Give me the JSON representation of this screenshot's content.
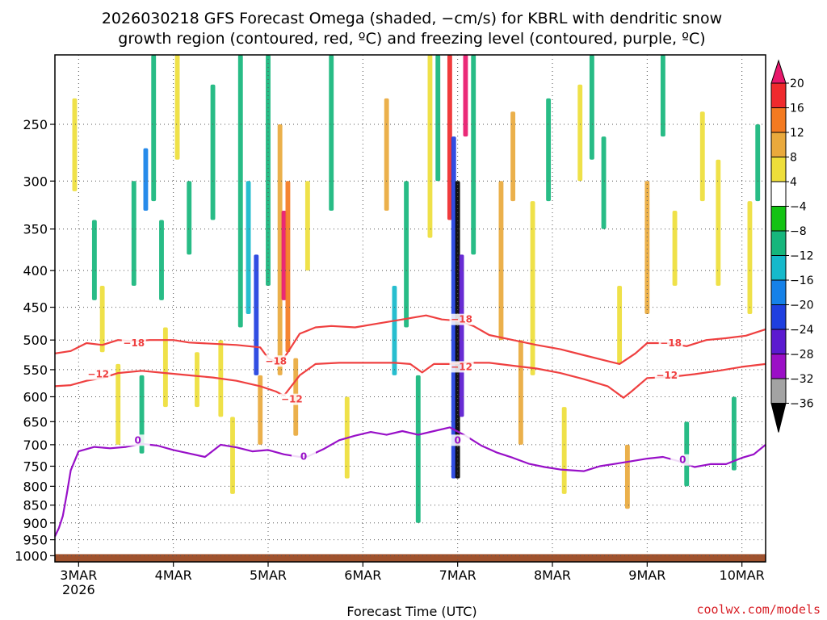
{
  "chart_data": {
    "type": "heatmap",
    "title_line1": "2026030218 GFS Forecast Omega (shaded, −cm/s) for KBRL with dendritic snow",
    "title_line2": "growth region (contoured, red, ºC) and freezing level (contoured, purple, ºC)",
    "xlabel": "Forecast Time (UTC)",
    "ylabel": "",
    "credit": "coolwx.com/models",
    "x_year": "2026",
    "x_ticks": [
      {
        "label": "3MAR",
        "t": 6
      },
      {
        "label": "4MAR",
        "t": 30
      },
      {
        "label": "5MAR",
        "t": 54
      },
      {
        "label": "6MAR",
        "t": 78
      },
      {
        "label": "7MAR",
        "t": 102
      },
      {
        "label": "8MAR",
        "t": 126
      },
      {
        "label": "9MAR",
        "t": 150
      },
      {
        "label": "10MAR",
        "t": 174
      }
    ],
    "xlim": [
      0,
      180
    ],
    "ylim": [
      1020,
      200
    ],
    "y_ticks": [
      250,
      300,
      350,
      400,
      450,
      500,
      550,
      600,
      650,
      700,
      750,
      800,
      850,
      900,
      950,
      1000
    ],
    "grid": true,
    "colorbar": {
      "labels": [
        "20",
        "16",
        "12",
        "8",
        "4",
        "−4",
        "−8",
        "−12",
        "−16",
        "−20",
        "−24",
        "−28",
        "−32",
        "−36"
      ],
      "colors": [
        "#e8176b",
        "#ef2a2d",
        "#f47a20",
        "#e9a93c",
        "#eede3a",
        "#ffffff",
        "#13c313",
        "#16b67c",
        "#15b9cb",
        "#1581e8",
        "#1f3fe0",
        "#5b1ad0",
        "#9b0fc6",
        "#a3a3a3",
        "#000000"
      ]
    },
    "omega_cells": [
      {
        "t": 5,
        "p1": 230,
        "p2": 310,
        "v": 6
      },
      {
        "t": 10,
        "p1": 340,
        "p2": 440,
        "v": -8
      },
      {
        "t": 12,
        "p1": 420,
        "p2": 520,
        "v": 6
      },
      {
        "t": 16,
        "p1": 540,
        "p2": 700,
        "v": 6
      },
      {
        "t": 20,
        "p1": 300,
        "p2": 420,
        "v": -10
      },
      {
        "t": 22,
        "p1": 560,
        "p2": 720,
        "v": -8
      },
      {
        "t": 23,
        "p1": 270,
        "p2": 330,
        "v": -18
      },
      {
        "t": 25,
        "p1": 200,
        "p2": 320,
        "v": -10
      },
      {
        "t": 27,
        "p1": 340,
        "p2": 440,
        "v": -8
      },
      {
        "t": 28,
        "p1": 480,
        "p2": 620,
        "v": 5
      },
      {
        "t": 31,
        "p1": 200,
        "p2": 280,
        "v": 6
      },
      {
        "t": 34,
        "p1": 300,
        "p2": 380,
        "v": -8
      },
      {
        "t": 36,
        "p1": 520,
        "p2": 620,
        "v": 6
      },
      {
        "t": 40,
        "p1": 220,
        "p2": 340,
        "v": -10
      },
      {
        "t": 42,
        "p1": 500,
        "p2": 640,
        "v": 6
      },
      {
        "t": 45,
        "p1": 640,
        "p2": 820,
        "v": 6
      },
      {
        "t": 47,
        "p1": 200,
        "p2": 480,
        "v": -10
      },
      {
        "t": 49,
        "p1": 300,
        "p2": 460,
        "v": -14
      },
      {
        "t": 51,
        "p1": 380,
        "p2": 560,
        "v": -20
      },
      {
        "t": 52,
        "p1": 560,
        "p2": 700,
        "v": 10
      },
      {
        "t": 54,
        "p1": 200,
        "p2": 420,
        "v": -8
      },
      {
        "t": 57,
        "p1": 250,
        "p2": 560,
        "v": 8
      },
      {
        "t": 58,
        "p1": 330,
        "p2": 440,
        "v": 20
      },
      {
        "t": 59,
        "p1": 300,
        "p2": 520,
        "v": 12
      },
      {
        "t": 61,
        "p1": 530,
        "p2": 680,
        "v": 8
      },
      {
        "t": 64,
        "p1": 300,
        "p2": 400,
        "v": 6
      },
      {
        "t": 70,
        "p1": 200,
        "p2": 330,
        "v": -8
      },
      {
        "t": 74,
        "p1": 600,
        "p2": 780,
        "v": 6
      },
      {
        "t": 84,
        "p1": 230,
        "p2": 330,
        "v": 10
      },
      {
        "t": 86,
        "p1": 420,
        "p2": 560,
        "v": -12
      },
      {
        "t": 89,
        "p1": 300,
        "p2": 480,
        "v": -8
      },
      {
        "t": 92,
        "p1": 560,
        "p2": 900,
        "v": -8
      },
      {
        "t": 95,
        "p1": 200,
        "p2": 360,
        "v": 6
      },
      {
        "t": 97,
        "p1": 200,
        "p2": 300,
        "v": -8
      },
      {
        "t": 100,
        "p1": 200,
        "p2": 340,
        "v": 16
      },
      {
        "t": 101,
        "p1": 260,
        "p2": 780,
        "v": -20
      },
      {
        "t": 102,
        "p1": 300,
        "p2": 780,
        "v": -36
      },
      {
        "t": 103,
        "p1": 380,
        "p2": 640,
        "v": -24
      },
      {
        "t": 104,
        "p1": 200,
        "p2": 260,
        "v": 20
      },
      {
        "t": 106,
        "p1": 200,
        "p2": 380,
        "v": -8
      },
      {
        "t": 113,
        "p1": 300,
        "p2": 500,
        "v": 8
      },
      {
        "t": 116,
        "p1": 240,
        "p2": 320,
        "v": 8
      },
      {
        "t": 118,
        "p1": 500,
        "p2": 700,
        "v": 10
      },
      {
        "t": 121,
        "p1": 320,
        "p2": 560,
        "v": 6
      },
      {
        "t": 125,
        "p1": 230,
        "p2": 320,
        "v": -10
      },
      {
        "t": 129,
        "p1": 620,
        "p2": 820,
        "v": 6
      },
      {
        "t": 133,
        "p1": 220,
        "p2": 300,
        "v": 6
      },
      {
        "t": 136,
        "p1": 200,
        "p2": 280,
        "v": -8
      },
      {
        "t": 139,
        "p1": 260,
        "p2": 350,
        "v": -10
      },
      {
        "t": 143,
        "p1": 420,
        "p2": 540,
        "v": 6
      },
      {
        "t": 145,
        "p1": 700,
        "p2": 860,
        "v": 10
      },
      {
        "t": 150,
        "p1": 300,
        "p2": 460,
        "v": 8
      },
      {
        "t": 154,
        "p1": 200,
        "p2": 260,
        "v": -8
      },
      {
        "t": 157,
        "p1": 330,
        "p2": 420,
        "v": 6
      },
      {
        "t": 160,
        "p1": 650,
        "p2": 800,
        "v": -8
      },
      {
        "t": 164,
        "p1": 240,
        "p2": 320,
        "v": 6
      },
      {
        "t": 168,
        "p1": 280,
        "p2": 420,
        "v": 5
      },
      {
        "t": 172,
        "p1": 600,
        "p2": 760,
        "v": -8
      },
      {
        "t": 176,
        "p1": 320,
        "p2": 460,
        "v": 6
      },
      {
        "t": 178,
        "p1": 250,
        "p2": 320,
        "v": -8
      }
    ],
    "contours": [
      {
        "name": "dgz-upper",
        "level": -18,
        "color": "#ef4040",
        "label": "−18",
        "label_pos": [
          {
            "t": 20,
            "p": 505
          },
          {
            "t": 56,
            "p": 535
          },
          {
            "t": 103,
            "p": 468
          },
          {
            "t": 156,
            "p": 505
          }
        ],
        "points": [
          [
            0,
            522
          ],
          [
            4,
            518
          ],
          [
            8,
            505
          ],
          [
            12,
            508
          ],
          [
            16,
            500
          ],
          [
            20,
            502
          ],
          [
            24,
            500
          ],
          [
            30,
            500
          ],
          [
            34,
            504
          ],
          [
            40,
            506
          ],
          [
            46,
            508
          ],
          [
            52,
            512
          ],
          [
            54,
            530
          ],
          [
            57,
            540
          ],
          [
            59,
            520
          ],
          [
            62,
            490
          ],
          [
            66,
            480
          ],
          [
            70,
            478
          ],
          [
            76,
            480
          ],
          [
            82,
            474
          ],
          [
            88,
            468
          ],
          [
            94,
            462
          ],
          [
            98,
            468
          ],
          [
            102,
            470
          ],
          [
            106,
            478
          ],
          [
            110,
            492
          ],
          [
            116,
            500
          ],
          [
            122,
            508
          ],
          [
            128,
            515
          ],
          [
            134,
            525
          ],
          [
            140,
            535
          ],
          [
            143,
            540
          ],
          [
            147,
            522
          ],
          [
            150,
            505
          ],
          [
            155,
            505
          ],
          [
            160,
            510
          ],
          [
            165,
            500
          ],
          [
            170,
            497
          ],
          [
            175,
            493
          ],
          [
            180,
            483
          ]
        ]
      },
      {
        "name": "dgz-lower",
        "level": -12,
        "color": "#ef4040",
        "label": "−12",
        "label_pos": [
          {
            "t": 11,
            "p": 558
          },
          {
            "t": 60,
            "p": 605
          },
          {
            "t": 103,
            "p": 545
          },
          {
            "t": 155,
            "p": 560
          }
        ],
        "points": [
          [
            0,
            580
          ],
          [
            4,
            578
          ],
          [
            8,
            570
          ],
          [
            12,
            565
          ],
          [
            16,
            556
          ],
          [
            22,
            552
          ],
          [
            28,
            556
          ],
          [
            34,
            560
          ],
          [
            40,
            564
          ],
          [
            46,
            570
          ],
          [
            52,
            580
          ],
          [
            56,
            590
          ],
          [
            58,
            598
          ],
          [
            62,
            560
          ],
          [
            66,
            540
          ],
          [
            72,
            538
          ],
          [
            80,
            538
          ],
          [
            86,
            538
          ],
          [
            90,
            540
          ],
          [
            93,
            555
          ],
          [
            96,
            540
          ],
          [
            100,
            540
          ],
          [
            104,
            538
          ],
          [
            110,
            538
          ],
          [
            116,
            543
          ],
          [
            122,
            548
          ],
          [
            128,
            556
          ],
          [
            134,
            567
          ],
          [
            140,
            580
          ],
          [
            144,
            602
          ],
          [
            146,
            590
          ],
          [
            150,
            565
          ],
          [
            156,
            563
          ],
          [
            162,
            558
          ],
          [
            168,
            552
          ],
          [
            174,
            545
          ],
          [
            180,
            540
          ]
        ]
      },
      {
        "name": "freezing-level",
        "level": 0,
        "color": "#9810c8",
        "label": "0",
        "label_pos": [
          {
            "t": 21,
            "p": 690
          },
          {
            "t": 63,
            "p": 727
          },
          {
            "t": 102,
            "p": 690
          },
          {
            "t": 159,
            "p": 735
          }
        ],
        "points": [
          [
            0,
            940
          ],
          [
            1,
            915
          ],
          [
            2,
            880
          ],
          [
            3,
            820
          ],
          [
            4,
            760
          ],
          [
            6,
            715
          ],
          [
            10,
            705
          ],
          [
            14,
            708
          ],
          [
            18,
            705
          ],
          [
            22,
            698
          ],
          [
            26,
            702
          ],
          [
            30,
            712
          ],
          [
            34,
            720
          ],
          [
            38,
            728
          ],
          [
            42,
            700
          ],
          [
            46,
            706
          ],
          [
            50,
            715
          ],
          [
            54,
            712
          ],
          [
            58,
            722
          ],
          [
            62,
            728
          ],
          [
            64,
            727
          ],
          [
            68,
            710
          ],
          [
            72,
            690
          ],
          [
            76,
            680
          ],
          [
            80,
            672
          ],
          [
            84,
            678
          ],
          [
            88,
            670
          ],
          [
            92,
            678
          ],
          [
            96,
            670
          ],
          [
            100,
            662
          ],
          [
            104,
            680
          ],
          [
            108,
            702
          ],
          [
            112,
            718
          ],
          [
            116,
            730
          ],
          [
            120,
            744
          ],
          [
            124,
            752
          ],
          [
            128,
            758
          ],
          [
            134,
            762
          ],
          [
            138,
            750
          ],
          [
            142,
            744
          ],
          [
            146,
            738
          ],
          [
            150,
            732
          ],
          [
            154,
            728
          ],
          [
            158,
            738
          ],
          [
            162,
            752
          ],
          [
            166,
            745
          ],
          [
            170,
            745
          ],
          [
            174,
            730
          ],
          [
            177,
            722
          ],
          [
            180,
            700
          ]
        ]
      }
    ],
    "ground": {
      "p_top": 995,
      "color": "#a0522d"
    }
  }
}
